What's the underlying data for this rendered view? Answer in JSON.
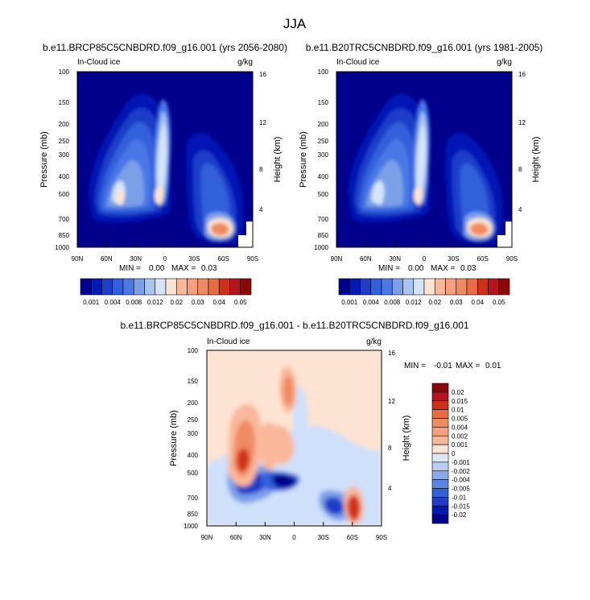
{
  "figure_title": "JJA",
  "colors": {
    "ocean_navy": "#00008c",
    "diff_background": "#fde4d2",
    "diff_neg_light": "#cfe0fa",
    "diff_neg_mid": "#7aa0e8",
    "diff_neg_dark": "#1e3ec8",
    "diff_pos_light": "#fab89a",
    "diff_pos_mid": "#f08a60",
    "diff_pos_dark": "#d03018"
  },
  "chart_data": [
    {
      "type": "heatmap",
      "title": "b.e11.BRCP85C5CNBDRD.f09_g16.001 (yrs 2056-2080)",
      "left_string": "In-Cloud ice",
      "right_string": "g/kg",
      "xlabel": "",
      "ylabel": "Pressure (mb)",
      "y2label": "Height (km)",
      "x_ticklabels": [
        "90N",
        "60N",
        "30N",
        "0",
        "30S",
        "60S",
        "90S"
      ],
      "y_ticklabels": [
        "100",
        "150",
        "200",
        "250",
        "300",
        "400",
        "500",
        "700",
        "850",
        "1000"
      ],
      "y2_ticklabels": [
        "16",
        "12",
        "8",
        "4"
      ],
      "min_label": "MIN =",
      "min_value": "0.00",
      "max_label": "MAX =",
      "max_value": "0.03",
      "colorbar_labels": [
        "0.001",
        "0.004",
        "0.008",
        "0.012",
        "0.02",
        "0.03",
        "0.04",
        "0.05"
      ],
      "colorbar_colors": [
        "#00008c",
        "#0418b4",
        "#1e3ec8",
        "#3260dc",
        "#4a78e6",
        "#7aa0e8",
        "#aac4f0",
        "#d4e4fa",
        "#fde4d2",
        "#fab89a",
        "#f8a07e",
        "#f08a60",
        "#e86c44",
        "#d03018",
        "#b4141c",
        "#8c0808"
      ]
    },
    {
      "type": "heatmap",
      "title": "b.e11.B20TRC5CNBDRD.f09_g16.001 (yrs 1981-2005)",
      "left_string": "In-Cloud ice",
      "right_string": "g/kg",
      "xlabel": "",
      "ylabel": "Pressure (mb)",
      "y2label": "Height (km)",
      "x_ticklabels": [
        "90N",
        "60N",
        "30N",
        "0",
        "30S",
        "60S",
        "90S"
      ],
      "y_ticklabels": [
        "100",
        "150",
        "200",
        "250",
        "300",
        "400",
        "500",
        "700",
        "850",
        "1000"
      ],
      "y2_ticklabels": [
        "16",
        "12",
        "8",
        "4"
      ],
      "min_label": "MIN =",
      "min_value": "0.00",
      "max_label": "MAX =",
      "max_value": "0.03",
      "colorbar_labels": [
        "0.001",
        "0.004",
        "0.008",
        "0.012",
        "0.02",
        "0.03",
        "0.04",
        "0.05"
      ],
      "colorbar_colors": [
        "#00008c",
        "#0418b4",
        "#1e3ec8",
        "#3260dc",
        "#4a78e6",
        "#7aa0e8",
        "#aac4f0",
        "#d4e4fa",
        "#fde4d2",
        "#fab89a",
        "#f8a07e",
        "#f08a60",
        "#e86c44",
        "#d03018",
        "#b4141c",
        "#8c0808"
      ]
    },
    {
      "type": "heatmap",
      "title": "b.e11.BRCP85C5CNBDRD.f09_g16.001 - b.e11.B20TRC5CNBDRD.f09_g16.001",
      "left_string": "In-Cloud ice",
      "right_string": "g/kg",
      "xlabel": "",
      "ylabel": "Pressure (mb)",
      "y2label": "Height (km)",
      "x_ticklabels": [
        "90N",
        "60N",
        "30N",
        "0",
        "30S",
        "60S",
        "90S"
      ],
      "y_ticklabels": [
        "100",
        "150",
        "200",
        "250",
        "300",
        "400",
        "500",
        "700",
        "850",
        "1000"
      ],
      "y2_ticklabels": [
        "16",
        "12",
        "8",
        "4"
      ],
      "min_label": "MIN =",
      "min_value": "-0.01",
      "max_label": "MAX =",
      "max_value": "0.01",
      "colorbar_labels": [
        "0.02",
        "0.015",
        "0.01",
        "0.005",
        "0.004",
        "0.002",
        "0.001",
        "0",
        "-0.001",
        "-0.002",
        "-0.004",
        "-0.005",
        "-0.01",
        "-0.015",
        "-0.02"
      ],
      "colorbar_colors": [
        "#8c0808",
        "#b4141c",
        "#d03018",
        "#e86c44",
        "#f08a60",
        "#f8a07e",
        "#fab89a",
        "#fde4d2",
        "#dce8fa",
        "#b8cef4",
        "#8aaaea",
        "#5c84e0",
        "#3060d8",
        "#1e3ec8",
        "#0418b4",
        "#00008c"
      ]
    }
  ]
}
